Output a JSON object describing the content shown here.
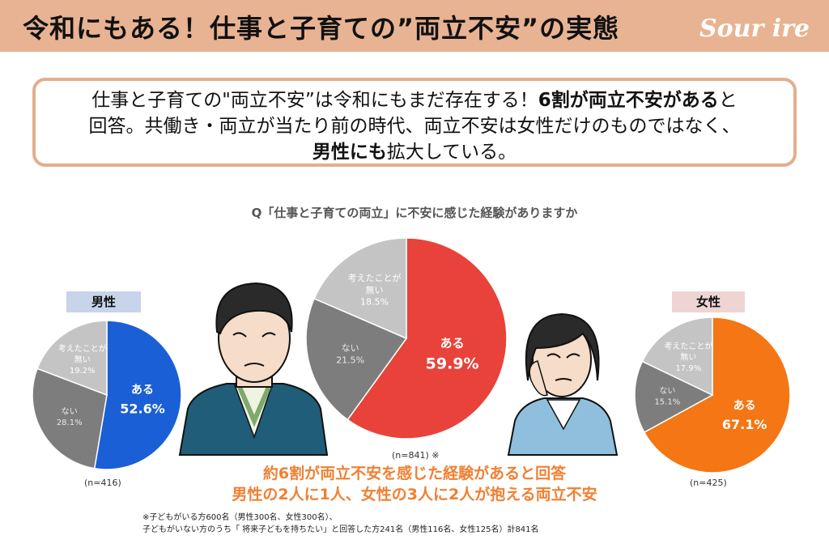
{
  "header": {
    "title": "令和にもある！仕事と子育ての”両立不安”の実態",
    "logo": "Sour ire"
  },
  "summary": {
    "part1": "仕事と子育ての\"両立不安”は令和にもまだ存在する！",
    "part2_bold": "6割が両立不安がある",
    "part3": "と",
    "line2": "回答。共働き・両立が当たり前の時代、両立不安は女性だけのものではなく、",
    "line3_bold": "男性にも",
    "line3": "拡大している。"
  },
  "chart_data": [
    {
      "type": "pie",
      "name": "",
      "title": "Q「仕事と子育ての両立」に不安に感じた経験がありますか",
      "n": "(n=841) ※",
      "categories": [
        "ある",
        "ない",
        "考えたことが無い"
      ],
      "values": [
        59.9,
        21.5,
        18.5
      ],
      "labels": [
        "59.9%",
        "21.5%",
        "18.5%"
      ],
      "colors": [
        "#e8423a",
        "#7d7d7d",
        "#c4c4c4"
      ]
    },
    {
      "type": "pie",
      "name": "男性",
      "n": "(n=416)",
      "categories": [
        "ある",
        "ない",
        "考えたことが無い"
      ],
      "values": [
        52.6,
        28.1,
        19.2
      ],
      "labels": [
        "52.6%",
        "28.1%",
        "19.2%"
      ],
      "colors": [
        "#1a5fd6",
        "#7d7d7d",
        "#c4c4c4"
      ]
    },
    {
      "type": "pie",
      "name": "女性",
      "n": "(n=425)",
      "categories": [
        "ある",
        "ない",
        "考えたことが無い"
      ],
      "values": [
        67.1,
        15.1,
        17.9
      ],
      "labels": [
        "67.1%",
        "15.1%",
        "17.9%"
      ],
      "colors": [
        "#f47614",
        "#7d7d7d",
        "#c4c4c4"
      ]
    }
  ],
  "conclusion": {
    "line1": "約6割が両立不安を感じた経験があると回答",
    "line2": "男性の2人に1人、女性の3人に2人が抱える両立不安"
  },
  "footnote": {
    "line1": "※子どもがいる方600名（男性300名、女性300名）、",
    "line2": "子どもがいない方のうち「 将来子どもを持ちたい」と回答した方241名（男性116名、女性125名）計841名"
  }
}
